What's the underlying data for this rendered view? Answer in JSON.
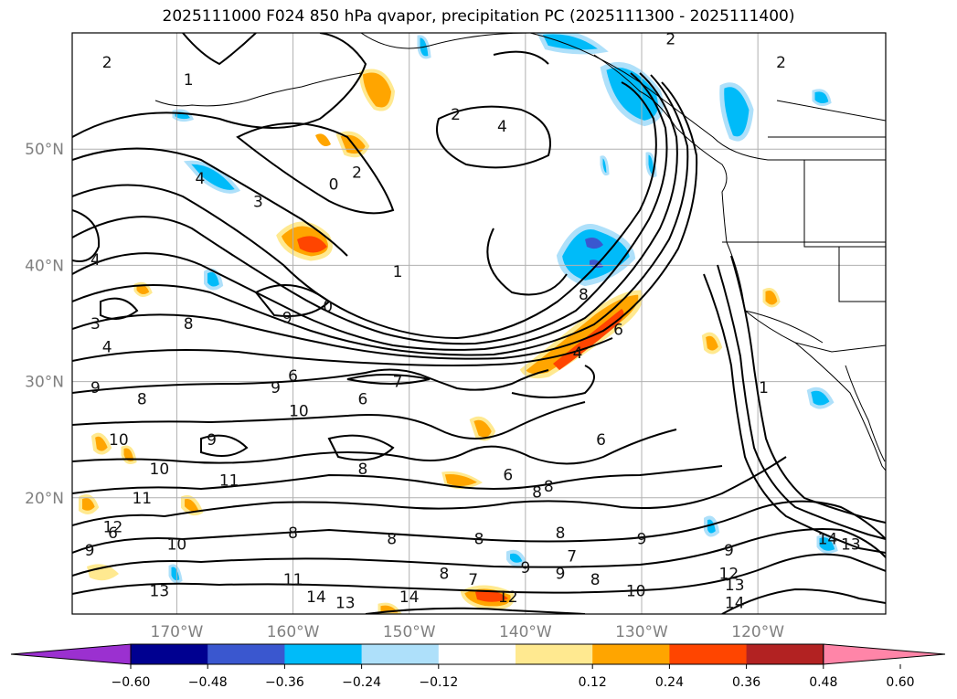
{
  "title": "2025111000 F024 850 hPa qvapor, precipitation PC (2025111300 - 2025111400)",
  "map": {
    "lon_range": [
      -179,
      -109
    ],
    "lat_range": [
      10,
      60
    ],
    "lon_ticks": [
      {
        "value": -170,
        "label": "170°W"
      },
      {
        "value": -160,
        "label": "160°W"
      },
      {
        "value": -150,
        "label": "150°W"
      },
      {
        "value": -140,
        "label": "140°W"
      },
      {
        "value": -130,
        "label": "130°W"
      },
      {
        "value": -120,
        "label": "120°W"
      }
    ],
    "lat_ticks": [
      {
        "value": 20,
        "label": "20°N"
      },
      {
        "value": 30,
        "label": "30°N"
      },
      {
        "value": 40,
        "label": "40°N"
      },
      {
        "value": 50,
        "label": "50°N"
      }
    ],
    "grid": true,
    "contour_labels": [
      {
        "text": "2",
        "lon": -176,
        "lat": 57.5
      },
      {
        "text": "1",
        "lon": -169,
        "lat": 56
      },
      {
        "text": "2",
        "lon": -146,
        "lat": 53
      },
      {
        "text": "4",
        "lon": -142,
        "lat": 52
      },
      {
        "text": "2",
        "lon": -127.5,
        "lat": 59.5
      },
      {
        "text": "2",
        "lon": -118,
        "lat": 57.5
      },
      {
        "text": "4",
        "lon": -168,
        "lat": 47.5
      },
      {
        "text": "3",
        "lon": -163,
        "lat": 45.5
      },
      {
        "text": "2",
        "lon": -154.5,
        "lat": 48
      },
      {
        "text": "0",
        "lon": -156.5,
        "lat": 47
      },
      {
        "text": "4",
        "lon": -177,
        "lat": 40.5
      },
      {
        "text": "1",
        "lon": -151,
        "lat": 39.5
      },
      {
        "text": "0",
        "lon": -157,
        "lat": 36.5
      },
      {
        "text": "9",
        "lon": -160.5,
        "lat": 35.5
      },
      {
        "text": "3",
        "lon": -177,
        "lat": 35
      },
      {
        "text": "4",
        "lon": -176,
        "lat": 33
      },
      {
        "text": "8",
        "lon": -169,
        "lat": 35
      },
      {
        "text": "9",
        "lon": -177,
        "lat": 29.5
      },
      {
        "text": "8",
        "lon": -173,
        "lat": 28.5
      },
      {
        "text": "9",
        "lon": -161.5,
        "lat": 29.5
      },
      {
        "text": "6",
        "lon": -160,
        "lat": 30.5
      },
      {
        "text": "6",
        "lon": -154,
        "lat": 28.5
      },
      {
        "text": "7",
        "lon": -151,
        "lat": 30
      },
      {
        "text": "10",
        "lon": -159.5,
        "lat": 27.5
      },
      {
        "text": "10",
        "lon": -175,
        "lat": 25
      },
      {
        "text": "9",
        "lon": -167,
        "lat": 25
      },
      {
        "text": "10",
        "lon": -171.5,
        "lat": 22.5
      },
      {
        "text": "11",
        "lon": -165.5,
        "lat": 21.5
      },
      {
        "text": "11",
        "lon": -173,
        "lat": 20
      },
      {
        "text": "8",
        "lon": -154,
        "lat": 22.5
      },
      {
        "text": "6",
        "lon": -141.5,
        "lat": 22
      },
      {
        "text": "6",
        "lon": -133.5,
        "lat": 25
      },
      {
        "text": "8",
        "lon": -138,
        "lat": 21
      },
      {
        "text": "6",
        "lon": -132,
        "lat": 34.5
      },
      {
        "text": "4",
        "lon": -135.5,
        "lat": 32.5
      },
      {
        "text": "8",
        "lon": -135,
        "lat": 37.5
      },
      {
        "text": "1",
        "lon": -119.5,
        "lat": 29.5
      },
      {
        "text": "12",
        "lon": -175.5,
        "lat": 17.5
      },
      {
        "text": "8",
        "lon": -160,
        "lat": 17
      },
      {
        "text": "8",
        "lon": -151.5,
        "lat": 16.5
      },
      {
        "text": "9",
        "lon": -130,
        "lat": 16.5
      },
      {
        "text": "9",
        "lon": -122.5,
        "lat": 15.5
      },
      {
        "text": "8",
        "lon": -137,
        "lat": 17
      },
      {
        "text": "9",
        "lon": -140,
        "lat": 14
      },
      {
        "text": "10",
        "lon": -170,
        "lat": 16
      },
      {
        "text": "8",
        "lon": -139,
        "lat": 20.5
      },
      {
        "text": "7",
        "lon": -136,
        "lat": 15
      },
      {
        "text": "8",
        "lon": -144,
        "lat": 16.5
      },
      {
        "text": "8",
        "lon": -147,
        "lat": 13.5
      },
      {
        "text": "7",
        "lon": -144.5,
        "lat": 13
      },
      {
        "text": "8",
        "lon": -134,
        "lat": 13
      },
      {
        "text": "9",
        "lon": -137,
        "lat": 13.5
      },
      {
        "text": "11",
        "lon": -160,
        "lat": 13
      },
      {
        "text": "14",
        "lon": -158,
        "lat": 11.5
      },
      {
        "text": "13",
        "lon": -155.5,
        "lat": 11
      },
      {
        "text": "14",
        "lon": -150,
        "lat": 11.5
      },
      {
        "text": "12",
        "lon": -141.5,
        "lat": 11.5
      },
      {
        "text": "10",
        "lon": -130.5,
        "lat": 12
      },
      {
        "text": "12",
        "lon": -122.5,
        "lat": 13.5
      },
      {
        "text": "13",
        "lon": -122,
        "lat": 12.5
      },
      {
        "text": "14",
        "lon": -122,
        "lat": 11
      },
      {
        "text": "14",
        "lon": -114,
        "lat": 16.5
      },
      {
        "text": "13",
        "lon": -112,
        "lat": 16
      },
      {
        "text": "13",
        "lon": -171.5,
        "lat": 12
      },
      {
        "text": "9",
        "lon": -177.5,
        "lat": 15.5
      },
      {
        "text": "6",
        "lon": -175.5,
        "lat": 17
      }
    ]
  },
  "colorbar": {
    "ticks": [
      "−0.60",
      "−0.48",
      "−0.36",
      "−0.24",
      "−0.12",
      "0.12",
      "0.24",
      "0.36",
      "0.48",
      "0.60"
    ],
    "colors": [
      "#9b30d0",
      "#000090",
      "#3a57cf",
      "#00bbf9",
      "#aee0fa",
      "#ffffff",
      "#ffe990",
      "#ffa500",
      "#ff4500",
      "#b22222",
      "#ff85a8"
    ]
  }
}
